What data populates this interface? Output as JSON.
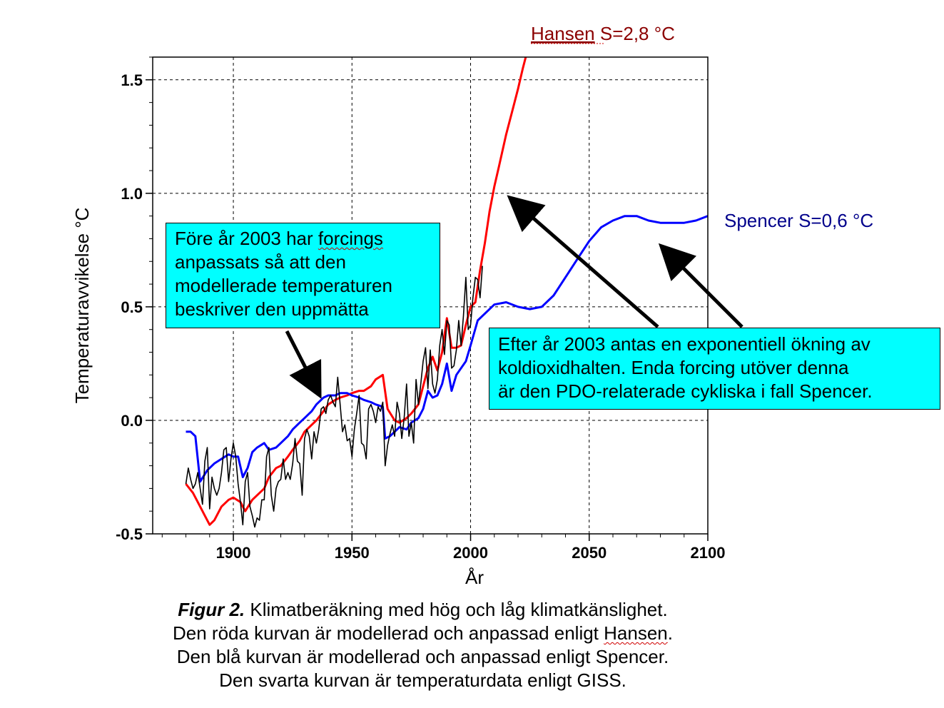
{
  "chart_data": {
    "type": "line",
    "xlabel": "År",
    "ylabel": "Temperaturavvikelse °C",
    "xlim": [
      1866,
      2100
    ],
    "ylim": [
      -0.5,
      1.6
    ],
    "xticks": [
      1900,
      1950,
      2000,
      2050,
      2100
    ],
    "yticks": [
      -0.5,
      0.0,
      0.5,
      1.0,
      1.5
    ],
    "ytick_labels": [
      "-0.5",
      "0.0",
      "0.5",
      "1.0",
      "1.5"
    ],
    "grid": true,
    "series": [
      {
        "name": "Hansen S=2,8 °C",
        "color": "#ff0000",
        "x": [
          1880,
          1883,
          1886,
          1888,
          1890,
          1892,
          1895,
          1898,
          1900,
          1903,
          1905,
          1908,
          1910,
          1913,
          1915,
          1918,
          1920,
          1923,
          1925,
          1928,
          1930,
          1933,
          1935,
          1938,
          1940,
          1943,
          1945,
          1948,
          1950,
          1953,
          1955,
          1958,
          1960,
          1963,
          1965,
          1968,
          1970,
          1973,
          1975,
          1978,
          1980,
          1982,
          1984,
          1986,
          1988,
          1990,
          1992,
          1994,
          1996,
          1998,
          2000,
          2002,
          2004,
          2006,
          2008,
          2010,
          2012,
          2015,
          2018,
          2020,
          2022,
          2024
        ],
        "y": [
          -0.28,
          -0.32,
          -0.38,
          -0.42,
          -0.46,
          -0.44,
          -0.38,
          -0.35,
          -0.34,
          -0.36,
          -0.4,
          -0.35,
          -0.33,
          -0.3,
          -0.25,
          -0.21,
          -0.2,
          -0.16,
          -0.13,
          -0.09,
          -0.05,
          -0.02,
          0.0,
          0.04,
          0.07,
          0.09,
          0.1,
          0.11,
          0.12,
          0.13,
          0.13,
          0.15,
          0.18,
          0.2,
          0.05,
          0.0,
          -0.01,
          0.01,
          0.03,
          0.07,
          0.15,
          0.23,
          0.28,
          0.22,
          0.3,
          0.45,
          0.32,
          0.32,
          0.33,
          0.42,
          0.5,
          0.52,
          0.66,
          0.78,
          0.92,
          1.03,
          1.12,
          1.26,
          1.38,
          1.46,
          1.55,
          1.63
        ]
      },
      {
        "name": "Spencer S=0,6 °C",
        "color": "#0000ff",
        "x": [
          1880,
          1882,
          1884,
          1886,
          1889,
          1892,
          1895,
          1898,
          1900,
          1902,
          1904,
          1906,
          1908,
          1910,
          1913,
          1915,
          1918,
          1920,
          1923,
          1925,
          1928,
          1930,
          1933,
          1935,
          1938,
          1940,
          1943,
          1945,
          1948,
          1950,
          1953,
          1955,
          1958,
          1960,
          1963,
          1964,
          1966,
          1968,
          1970,
          1973,
          1975,
          1978,
          1980,
          1982,
          1984,
          1986,
          1988,
          1990,
          1992,
          1994,
          1996,
          1998,
          2000,
          2003,
          2006,
          2010,
          2015,
          2020,
          2025,
          2030,
          2035,
          2040,
          2045,
          2050,
          2055,
          2060,
          2065,
          2070,
          2075,
          2080,
          2085,
          2090,
          2095,
          2100
        ],
        "y": [
          -0.05,
          -0.05,
          -0.07,
          -0.27,
          -0.22,
          -0.19,
          -0.17,
          -0.15,
          -0.16,
          -0.16,
          -0.25,
          -0.21,
          -0.14,
          -0.12,
          -0.1,
          -0.13,
          -0.12,
          -0.1,
          -0.07,
          -0.04,
          -0.01,
          0.01,
          0.04,
          0.07,
          0.1,
          0.11,
          0.11,
          0.12,
          0.12,
          0.11,
          0.1,
          0.09,
          0.08,
          0.07,
          0.06,
          -0.08,
          -0.07,
          -0.05,
          -0.03,
          -0.04,
          -0.01,
          0.01,
          0.05,
          0.13,
          0.1,
          0.11,
          0.16,
          0.25,
          0.13,
          0.2,
          0.23,
          0.26,
          0.33,
          0.44,
          0.47,
          0.51,
          0.52,
          0.5,
          0.49,
          0.5,
          0.55,
          0.63,
          0.71,
          0.79,
          0.85,
          0.88,
          0.9,
          0.9,
          0.88,
          0.87,
          0.87,
          0.87,
          0.88,
          0.9
        ]
      },
      {
        "name": "GISS",
        "color": "#000000",
        "x": [
          1880,
          1881,
          1882,
          1883,
          1884,
          1885,
          1886,
          1887,
          1888,
          1889,
          1890,
          1891,
          1892,
          1893,
          1894,
          1895,
          1896,
          1897,
          1898,
          1899,
          1900,
          1901,
          1902,
          1903,
          1904,
          1905,
          1906,
          1907,
          1908,
          1909,
          1910,
          1911,
          1912,
          1913,
          1914,
          1915,
          1916,
          1917,
          1918,
          1919,
          1920,
          1921,
          1922,
          1923,
          1924,
          1925,
          1926,
          1927,
          1928,
          1929,
          1930,
          1931,
          1932,
          1933,
          1934,
          1935,
          1936,
          1937,
          1938,
          1939,
          1940,
          1941,
          1942,
          1943,
          1944,
          1945,
          1946,
          1947,
          1948,
          1949,
          1950,
          1951,
          1952,
          1953,
          1954,
          1955,
          1956,
          1957,
          1958,
          1959,
          1960,
          1961,
          1962,
          1963,
          1964,
          1965,
          1966,
          1967,
          1968,
          1969,
          1970,
          1971,
          1972,
          1973,
          1974,
          1975,
          1976,
          1977,
          1978,
          1979,
          1980,
          1981,
          1982,
          1983,
          1984,
          1985,
          1986,
          1987,
          1988,
          1989,
          1990,
          1991,
          1992,
          1993,
          1994,
          1995,
          1996,
          1997,
          1998,
          1999,
          2000,
          2001,
          2002,
          2003,
          2004,
          2005
        ],
        "y": [
          -0.28,
          -0.21,
          -0.26,
          -0.3,
          -0.28,
          -0.23,
          -0.3,
          -0.37,
          -0.18,
          -0.12,
          -0.39,
          -0.25,
          -0.3,
          -0.33,
          -0.3,
          -0.23,
          -0.13,
          -0.12,
          -0.27,
          -0.17,
          -0.1,
          -0.16,
          -0.28,
          -0.36,
          -0.46,
          -0.27,
          -0.23,
          -0.38,
          -0.42,
          -0.47,
          -0.43,
          -0.44,
          -0.35,
          -0.35,
          -0.16,
          -0.12,
          -0.33,
          -0.4,
          -0.3,
          -0.27,
          -0.26,
          -0.17,
          -0.26,
          -0.23,
          -0.26,
          -0.19,
          -0.08,
          -0.18,
          -0.19,
          -0.33,
          -0.08,
          -0.04,
          -0.07,
          -0.17,
          -0.05,
          -0.1,
          -0.04,
          0.05,
          0.06,
          0.03,
          0.09,
          0.11,
          0.08,
          0.06,
          0.19,
          0.07,
          -0.05,
          -0.02,
          -0.09,
          -0.08,
          -0.16,
          -0.04,
          0.03,
          0.11,
          -0.1,
          -0.11,
          -0.17,
          0.05,
          0.07,
          0.04,
          -0.01,
          0.06,
          0.04,
          0.08,
          -0.2,
          -0.11,
          -0.06,
          -0.02,
          -0.07,
          0.08,
          0.03,
          -0.08,
          0.01,
          0.16,
          -0.07,
          -0.01,
          -0.1,
          0.18,
          0.07,
          0.16,
          0.26,
          0.32,
          0.14,
          0.31,
          0.16,
          0.12,
          0.18,
          0.33,
          0.4,
          0.29,
          0.44,
          0.42,
          0.23,
          0.24,
          0.31,
          0.44,
          0.33,
          0.46,
          0.63,
          0.4,
          0.42,
          0.54,
          0.63,
          0.62,
          0.54,
          0.68
        ]
      }
    ]
  },
  "labels": {
    "hansen_prefix": "Hansen",
    "hansen_suffix": " S=2,8 °C",
    "spencer": "Spencer S=0,6 °C"
  },
  "annotations": {
    "left_box": {
      "line1_prefix": "Före år 2003 har ",
      "line1_word": "forcings",
      "line2": "anpassats så att den",
      "line3": "modellerade temperaturen",
      "line4": "beskriver den uppmätta"
    },
    "right_box": {
      "line1": "Efter år 2003 antas  en exponentiell ökning av",
      "line2": "koldioxidhalten. Enda forcing utöver denna",
      "line3": "är den PDO-relaterade cykliska i fall Spencer."
    }
  },
  "caption": {
    "lead": "Figur 2.",
    "line1_rest": " Klimatberäkning med hög och låg klimatkänslighet.",
    "line2_prefix": "Den röda kurvan är modellerad och anpassad enligt ",
    "line2_word": "Hansen",
    "line2_end": ".",
    "line3": "Den blå kurvan är modellerad och anpassad enligt Spencer.",
    "line4": "Den  svarta kurvan är temperaturdata enligt GISS."
  }
}
